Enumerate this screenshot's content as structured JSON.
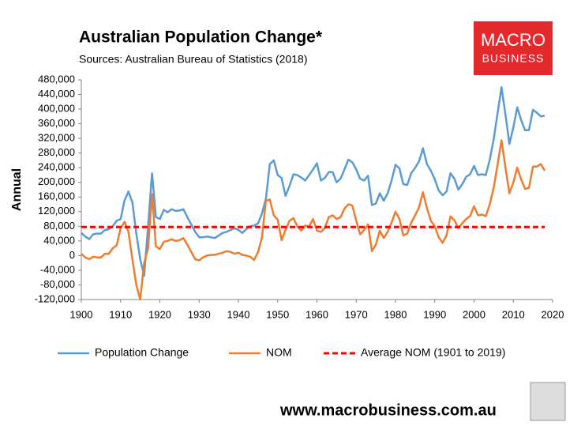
{
  "chart_data": {
    "type": "line",
    "title": "Australian Population Change*",
    "subtitle": "Sources: Australian Bureau of Statistics (2018)",
    "y_label": "Annual",
    "logo": [
      "MACRO",
      "BUSINESS"
    ],
    "footer": "www.macrobusiness.com.au",
    "legend": "bottom",
    "grid": false,
    "x": [
      1900,
      1901,
      1902,
      1903,
      1904,
      1905,
      1906,
      1907,
      1908,
      1909,
      1910,
      1911,
      1912,
      1913,
      1914,
      1915,
      1916,
      1917,
      1918,
      1919,
      1920,
      1921,
      1922,
      1923,
      1924,
      1925,
      1926,
      1927,
      1928,
      1929,
      1930,
      1931,
      1932,
      1933,
      1934,
      1935,
      1936,
      1937,
      1938,
      1939,
      1940,
      1941,
      1942,
      1943,
      1944,
      1945,
      1946,
      1947,
      1948,
      1949,
      1950,
      1951,
      1952,
      1953,
      1954,
      1955,
      1956,
      1957,
      1958,
      1959,
      1960,
      1961,
      1962,
      1963,
      1964,
      1965,
      1966,
      1967,
      1968,
      1969,
      1970,
      1971,
      1972,
      1973,
      1974,
      1975,
      1976,
      1977,
      1978,
      1979,
      1980,
      1981,
      1982,
      1983,
      1984,
      1985,
      1986,
      1987,
      1988,
      1989,
      1990,
      1991,
      1992,
      1993,
      1994,
      1995,
      1996,
      1997,
      1998,
      1999,
      2000,
      2001,
      2002,
      2003,
      2004,
      2005,
      2006,
      2007,
      2008,
      2009,
      2010,
      2011,
      2012,
      2013,
      2014,
      2015,
      2016,
      2017,
      2018
    ],
    "series": [
      {
        "name": "Population Change",
        "color": "#5b9bd5",
        "values": [
          62000,
          52000,
          45000,
          58000,
          60000,
          60000,
          70000,
          72000,
          80000,
          95000,
          100000,
          150000,
          175000,
          145000,
          60000,
          -10000,
          -55000,
          80000,
          225000,
          105000,
          100000,
          125000,
          118000,
          127000,
          122000,
          123000,
          127000,
          105000,
          85000,
          65000,
          50000,
          50000,
          52000,
          50000,
          48000,
          55000,
          62000,
          65000,
          70000,
          75000,
          70000,
          62000,
          72000,
          80000,
          82000,
          88000,
          115000,
          155000,
          250000,
          260000,
          220000,
          212000,
          163000,
          190000,
          222000,
          220000,
          213000,
          205000,
          220000,
          235000,
          252000,
          205000,
          212000,
          228000,
          228000,
          200000,
          210000,
          235000,
          262000,
          255000,
          235000,
          210000,
          205000,
          218000,
          138000,
          142000,
          170000,
          150000,
          170000,
          205000,
          248000,
          238000,
          195000,
          193000,
          225000,
          240000,
          258000,
          293000,
          250000,
          232000,
          208000,
          178000,
          165000,
          175000,
          225000,
          210000,
          180000,
          195000,
          215000,
          222000,
          245000,
          220000,
          222000,
          220000,
          262000,
          318000,
          390000,
          460000,
          385000,
          305000,
          350000,
          405000,
          370000,
          342000,
          343000,
          398000,
          390000,
          380000,
          382000
        ]
      },
      {
        "name": "NOM",
        "color": "#ed7d31",
        "values": [
          5000,
          -5000,
          -10000,
          -3000,
          -5000,
          -5000,
          5000,
          5000,
          20000,
          28000,
          75000,
          92000,
          65000,
          -10000,
          -80000,
          -120000,
          -20000,
          20000,
          168000,
          25000,
          18000,
          38000,
          40000,
          45000,
          40000,
          42000,
          48000,
          30000,
          10000,
          -10000,
          -13000,
          -5000,
          0,
          2000,
          2000,
          5000,
          8000,
          12000,
          10000,
          5000,
          8000,
          2000,
          0,
          -3000,
          -12000,
          10000,
          50000,
          150000,
          153000,
          110000,
          98000,
          42000,
          70000,
          95000,
          102000,
          80000,
          68000,
          82000,
          80000,
          100000,
          68000,
          65000,
          75000,
          105000,
          110000,
          100000,
          105000,
          128000,
          140000,
          137000,
          95000,
          58000,
          70000,
          85000,
          12000,
          30000,
          68000,
          48000,
          65000,
          90000,
          120000,
          100000,
          55000,
          60000,
          90000,
          110000,
          132000,
          173000,
          130000,
          95000,
          80000,
          50000,
          35000,
          55000,
          107000,
          97000,
          75000,
          88000,
          100000,
          108000,
          135000,
          110000,
          112000,
          108000,
          140000,
          185000,
          250000,
          315000,
          240000,
          170000,
          200000,
          240000,
          208000,
          182000,
          185000,
          243000,
          243000,
          250000,
          232000
        ]
      }
    ],
    "reference_line": {
      "name": "Average NOM (1901 to 2019)",
      "color": "#ff0000",
      "value": 78000
    },
    "xlim": [
      1900,
      2020
    ],
    "xticks": [
      1900,
      1910,
      1920,
      1930,
      1940,
      1950,
      1960,
      1970,
      1980,
      1990,
      2000,
      2010,
      2020
    ],
    "ylim": [
      -120000,
      480000
    ],
    "yticks": [
      {
        "value": -120000,
        "label": "-120,000"
      },
      {
        "value": -80000,
        "label": "-80,000"
      },
      {
        "value": -40000,
        "label": "-40,000"
      },
      0,
      {
        "value": 40000,
        "label": "40,000"
      },
      {
        "value": 80000,
        "label": "80,000"
      },
      {
        "value": 120000,
        "label": "120,000"
      },
      {
        "value": 160000,
        "label": "160,000"
      },
      {
        "value": 200000,
        "label": "200,000"
      },
      {
        "value": 240000,
        "label": "240,000"
      },
      {
        "value": 280000,
        "label": "280,000"
      },
      {
        "value": 320000,
        "label": "320,000"
      },
      {
        "value": 360000,
        "label": "360,000"
      },
      {
        "value": 400000,
        "label": "400,000"
      },
      {
        "value": 440000,
        "label": "440,000"
      },
      {
        "value": 480000,
        "label": "480,000"
      }
    ]
  }
}
